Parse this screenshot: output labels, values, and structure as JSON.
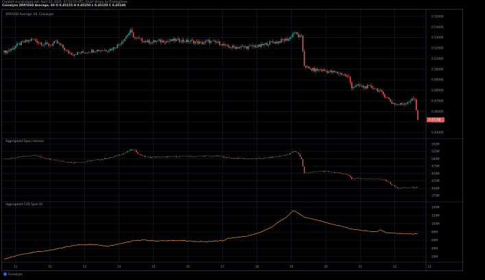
{
  "header": {
    "created_line": "Created on coinalyze.net, April 22, 2025, 07:53:53 UTC, Chart library by TradingView",
    "symbol_line": "Coinalyze XRP/USD Average, 60  O 0.45155 H 0.45250 L 0.45150 C 0.45188"
  },
  "panes": {
    "price_title": "XRP/USD Average, 60, Coinalyze",
    "oi_title": "Aggregated Open Interest",
    "cvd_title": "Aggregated CVD Spot (0)"
  },
  "footer": {
    "brand": "Coinalyze"
  },
  "colors": {
    "up": "#26a69a",
    "down": "#ef5350",
    "cvd": "#f7931a",
    "bg": "#000000",
    "grid": "#1c1f26",
    "last_price_bg": "#ef5350"
  },
  "chart_data": [
    {
      "type": "candlestick",
      "title": "XRP/USD Average, 60, Coinalyze",
      "ylim": [
        0.435,
        0.56
      ],
      "y_ticks": [
        "0.55000",
        "0.54000",
        "0.53000",
        "0.52000",
        "0.51000",
        "0.50000",
        "0.49000",
        "0.48000",
        "0.47000",
        "0.46000",
        "0.45000",
        "0.44000"
      ],
      "last_price": "0.45188",
      "x_range": [
        0,
        288
      ],
      "anchors": [
        [
          0,
          0.52
        ],
        [
          4,
          0.522
        ],
        [
          8,
          0.526
        ],
        [
          12,
          0.529
        ],
        [
          16,
          0.531
        ],
        [
          20,
          0.533
        ],
        [
          24,
          0.53
        ],
        [
          28,
          0.528
        ],
        [
          32,
          0.527
        ],
        [
          36,
          0.53
        ],
        [
          40,
          0.526
        ],
        [
          44,
          0.52
        ],
        [
          48,
          0.518
        ],
        [
          52,
          0.519
        ],
        [
          56,
          0.52
        ],
        [
          60,
          0.521
        ],
        [
          64,
          0.522
        ],
        [
          68,
          0.522
        ],
        [
          72,
          0.522
        ],
        [
          76,
          0.524
        ],
        [
          80,
          0.528
        ],
        [
          84,
          0.534
        ],
        [
          88,
          0.541
        ],
        [
          91,
          0.534
        ],
        [
          94,
          0.533
        ],
        [
          98,
          0.531
        ],
        [
          102,
          0.53
        ],
        [
          106,
          0.531
        ],
        [
          110,
          0.531
        ],
        [
          114,
          0.531
        ],
        [
          118,
          0.532
        ],
        [
          122,
          0.532
        ],
        [
          126,
          0.531
        ],
        [
          130,
          0.531
        ],
        [
          134,
          0.53
        ],
        [
          138,
          0.529
        ],
        [
          142,
          0.531
        ],
        [
          146,
          0.53
        ],
        [
          150,
          0.529
        ],
        [
          154,
          0.526
        ],
        [
          158,
          0.525
        ],
        [
          162,
          0.525
        ],
        [
          166,
          0.525
        ],
        [
          170,
          0.525
        ],
        [
          174,
          0.526
        ],
        [
          178,
          0.526
        ],
        [
          182,
          0.528
        ],
        [
          186,
          0.53
        ],
        [
          190,
          0.53
        ],
        [
          194,
          0.532
        ],
        [
          198,
          0.533
        ],
        [
          202,
          0.54
        ],
        [
          205,
          0.536
        ],
        [
          207,
          0.535
        ],
        [
          209,
          0.507
        ],
        [
          212,
          0.503
        ],
        [
          216,
          0.502
        ],
        [
          220,
          0.502
        ],
        [
          224,
          0.501
        ],
        [
          228,
          0.5
        ],
        [
          232,
          0.499
        ],
        [
          236,
          0.498
        ],
        [
          240,
          0.494
        ],
        [
          242,
          0.485
        ],
        [
          246,
          0.486
        ],
        [
          250,
          0.485
        ],
        [
          254,
          0.485
        ],
        [
          258,
          0.484
        ],
        [
          262,
          0.48
        ],
        [
          266,
          0.475
        ],
        [
          270,
          0.469
        ],
        [
          274,
          0.467
        ],
        [
          278,
          0.468
        ],
        [
          282,
          0.471
        ],
        [
          286,
          0.473
        ],
        [
          288,
          0.452
        ]
      ]
    },
    {
      "type": "bar",
      "title": "Aggregated Open Interest",
      "ylim": [
        360,
        560
      ],
      "y_ticks": [
        "550M",
        "525M",
        "500M",
        "475M",
        "450M",
        "425M",
        "400M",
        "375M"
      ],
      "anchors": [
        [
          0,
          496
        ],
        [
          4,
          498
        ],
        [
          8,
          500
        ],
        [
          12,
          505
        ],
        [
          16,
          507
        ],
        [
          20,
          510
        ],
        [
          24,
          505
        ],
        [
          28,
          500
        ],
        [
          32,
          496
        ],
        [
          36,
          493
        ],
        [
          40,
          490
        ],
        [
          44,
          486
        ],
        [
          48,
          485
        ],
        [
          52,
          486
        ],
        [
          56,
          487
        ],
        [
          60,
          490
        ],
        [
          64,
          493
        ],
        [
          68,
          496
        ],
        [
          72,
          499
        ],
        [
          76,
          503
        ],
        [
          80,
          510
        ],
        [
          84,
          517
        ],
        [
          88,
          527
        ],
        [
          91,
          525
        ],
        [
          94,
          512
        ],
        [
          98,
          504
        ],
        [
          102,
          502
        ],
        [
          106,
          503
        ],
        [
          110,
          503
        ],
        [
          114,
          504
        ],
        [
          118,
          504
        ],
        [
          122,
          505
        ],
        [
          126,
          506
        ],
        [
          130,
          505
        ],
        [
          134,
          505
        ],
        [
          138,
          506
        ],
        [
          142,
          507
        ],
        [
          146,
          506
        ],
        [
          150,
          506
        ],
        [
          154,
          502
        ],
        [
          158,
          500
        ],
        [
          162,
          499
        ],
        [
          166,
          498
        ],
        [
          170,
          497
        ],
        [
          174,
          497
        ],
        [
          178,
          498
        ],
        [
          182,
          500
        ],
        [
          186,
          502
        ],
        [
          190,
          504
        ],
        [
          194,
          509
        ],
        [
          198,
          512
        ],
        [
          202,
          523
        ],
        [
          205,
          514
        ],
        [
          207,
          495
        ],
        [
          209,
          448
        ],
        [
          212,
          452
        ],
        [
          216,
          453
        ],
        [
          220,
          455
        ],
        [
          224,
          455
        ],
        [
          228,
          453
        ],
        [
          232,
          450
        ],
        [
          236,
          448
        ],
        [
          240,
          442
        ],
        [
          242,
          430
        ],
        [
          246,
          432
        ],
        [
          250,
          431
        ],
        [
          254,
          430
        ],
        [
          258,
          430
        ],
        [
          262,
          428
        ],
        [
          266,
          425
        ],
        [
          270,
          410
        ],
        [
          274,
          398
        ],
        [
          278,
          400
        ],
        [
          282,
          402
        ],
        [
          286,
          401
        ],
        [
          288,
          401
        ]
      ]
    },
    {
      "type": "line",
      "title": "Aggregated CVD Spot (0)",
      "ylim": [
        0,
        160
      ],
      "y_ticks": [
        "140M",
        "120M",
        "100M",
        "80M",
        "60M",
        "40M",
        "20M"
      ],
      "anchors": [
        [
          0,
          5
        ],
        [
          6,
          12
        ],
        [
          12,
          18
        ],
        [
          18,
          22
        ],
        [
          24,
          26
        ],
        [
          30,
          28
        ],
        [
          36,
          32
        ],
        [
          42,
          38
        ],
        [
          48,
          42
        ],
        [
          54,
          45
        ],
        [
          60,
          45
        ],
        [
          66,
          44
        ],
        [
          72,
          40
        ],
        [
          78,
          45
        ],
        [
          84,
          50
        ],
        [
          90,
          55
        ],
        [
          96,
          58
        ],
        [
          100,
          56
        ],
        [
          108,
          55
        ],
        [
          116,
          56
        ],
        [
          124,
          56
        ],
        [
          132,
          54
        ],
        [
          140,
          53
        ],
        [
          148,
          55
        ],
        [
          152,
          55
        ],
        [
          156,
          62
        ],
        [
          162,
          65
        ],
        [
          168,
          68
        ],
        [
          174,
          73
        ],
        [
          180,
          82
        ],
        [
          186,
          93
        ],
        [
          192,
          110
        ],
        [
          198,
          125
        ],
        [
          201,
          140
        ],
        [
          204,
          135
        ],
        [
          206,
          128
        ],
        [
          210,
          120
        ],
        [
          216,
          115
        ],
        [
          222,
          109
        ],
        [
          228,
          102
        ],
        [
          234,
          97
        ],
        [
          240,
          90
        ],
        [
          246,
          86
        ],
        [
          252,
          83
        ],
        [
          258,
          80
        ],
        [
          262,
          85
        ],
        [
          266,
          78
        ],
        [
          272,
          76
        ],
        [
          278,
          75
        ],
        [
          284,
          74
        ],
        [
          288,
          75
        ]
      ]
    }
  ],
  "time_axis": {
    "labels": [
      "11",
      "12",
      "13",
      "14",
      "15",
      "16",
      "17",
      "18",
      "19",
      "20",
      "21",
      "22",
      "23"
    ]
  }
}
